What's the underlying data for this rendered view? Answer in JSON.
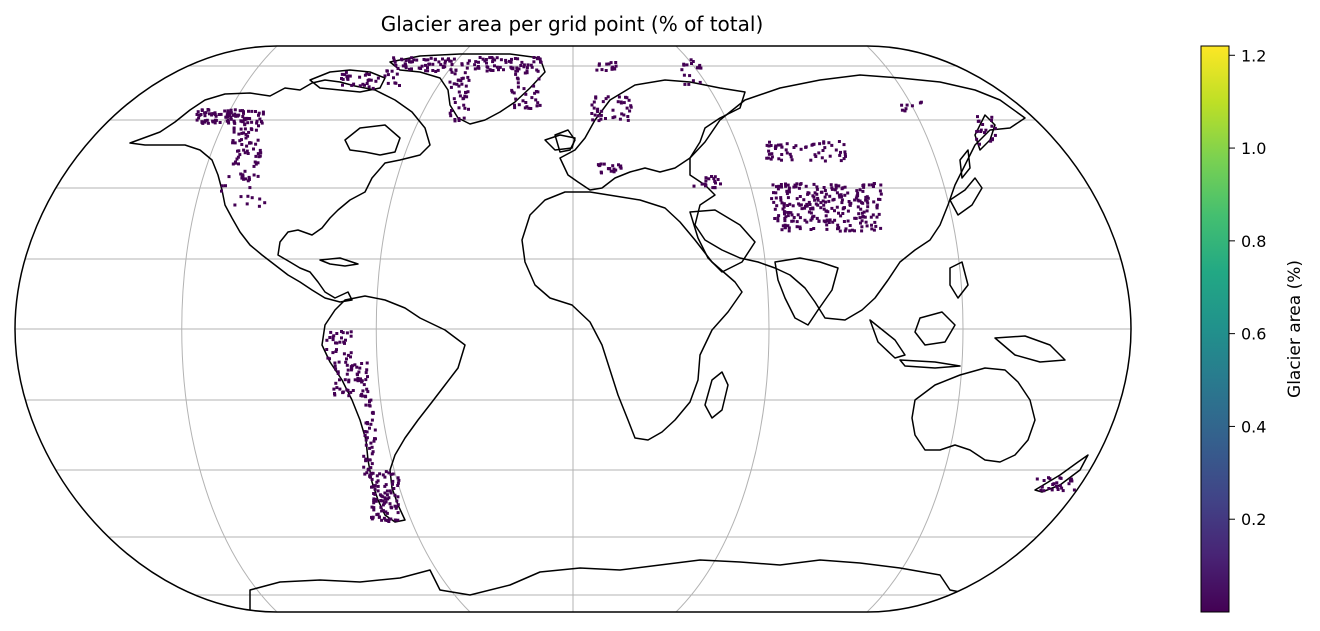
{
  "map": {
    "title": "Glacier area per grid point (% of total)",
    "projection": "Robinson",
    "gridlines": true,
    "coastlines": true
  },
  "colorbar": {
    "label": "Glacier area (%)",
    "colormap": "viridis",
    "range": [
      0.0,
      1.22
    ],
    "ticks": [
      "0.2",
      "0.4",
      "0.6",
      "0.8",
      "1.0",
      "1.2"
    ],
    "tick_values": [
      0.2,
      0.4,
      0.6,
      0.8,
      1.0,
      1.2
    ]
  },
  "colors": {
    "glacier": "#440154",
    "coast": "#000000",
    "grid": "#b3b3b3"
  },
  "glacier_regions": [
    "alaska",
    "western-canada",
    "canadian-arctic",
    "greenland",
    "iceland",
    "svalbard",
    "scandinavia",
    "alps",
    "caucasus",
    "central-asia-tibet",
    "russian-arctic",
    "kamchatka",
    "andes",
    "patagonia",
    "new-zealand"
  ]
}
